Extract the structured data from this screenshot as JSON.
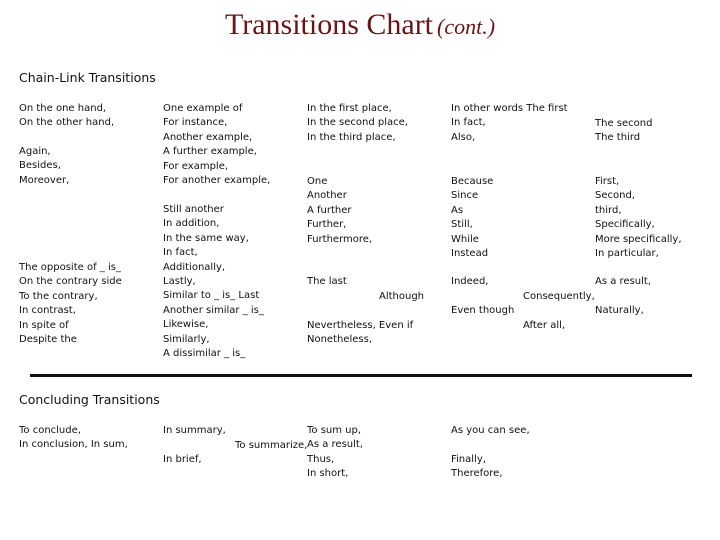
{
  "title": {
    "main": "Transitions Chart",
    "sub": "(cont.)"
  },
  "chain_link": {
    "heading": "Chain-Link Transitions",
    "col1_a": [
      "On the one hand,",
      "On the other hand,"
    ],
    "col1_b": [
      "Again,",
      "Besides,",
      "Moreover,"
    ],
    "col1_c": [
      "The opposite of _ is_",
      "On the contrary side",
      "To the contrary,",
      "In contrast,",
      "In spite of",
      "Despite the"
    ],
    "col2_a": [
      "One example of",
      "For instance,",
      "Another example,",
      "A further example,",
      "For example,",
      "For another example,"
    ],
    "col2_b": [
      "Still another",
      "In addition,",
      "In the same way,",
      "In fact,",
      "Additionally,",
      "Lastly,",
      "Similar to _ is_ Last",
      "Another similar _ is_",
      "Likewise,",
      "Similarly,",
      "A dissimilar _ is_"
    ],
    "col3_a": [
      "In the first place,",
      "In the second place,",
      "In the third place,"
    ],
    "col3_b": [
      "One",
      "Another",
      "A further",
      "Further,",
      "Furthermore,"
    ],
    "col3_c": [
      "The last"
    ],
    "col3_c_right": "Although",
    "col3_d": [
      "Nevertheless,  Even if",
      "Nonetheless,"
    ],
    "col4_a": [
      "In other words The first",
      "In fact,",
      "Also,"
    ],
    "col4_b": [
      "Because",
      "Since",
      "As",
      "Still,",
      "While",
      "Instead"
    ],
    "col4_c": [
      "Indeed,"
    ],
    "col4_c_mid": "Consequently,",
    "col4_d": [
      "Even though"
    ],
    "col4_d_mid": "After all,",
    "col5_a": [
      "The second",
      "The third"
    ],
    "col5_b": [
      "First,",
      "Second,",
      "third,",
      "Specifically,",
      "More specifically,",
      "In particular,"
    ],
    "col5_c": [
      "As a result,"
    ],
    "col5_d": [
      "Naturally,"
    ]
  },
  "concluding": {
    "heading": "Concluding Transitions",
    "col1": [
      "To conclude,",
      "In conclusion,  In sum,"
    ],
    "col2_a": [
      "In summary,"
    ],
    "col2_mid": "To summarize,",
    "col2_b": [
      "In brief,"
    ],
    "col3": [
      "To sum up,",
      "As a result,",
      "Thus,",
      "In short,"
    ],
    "col4_a": [
      "As you can see,"
    ],
    "col4_b": [
      "Finally,",
      "Therefore,"
    ]
  }
}
